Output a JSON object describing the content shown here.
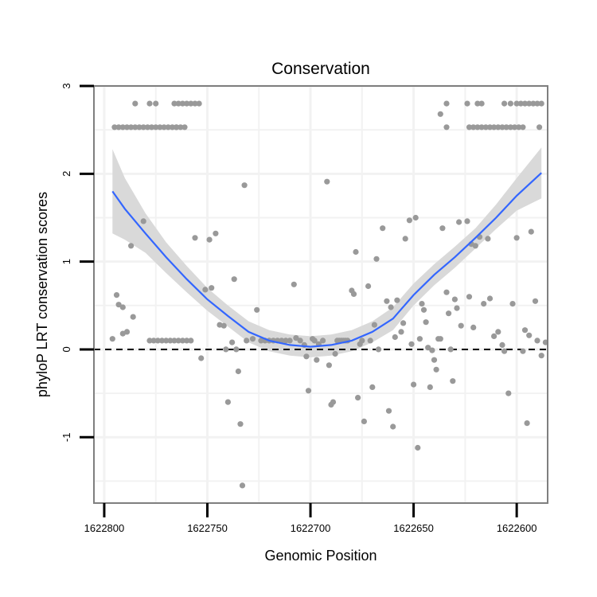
{
  "chart_data": {
    "type": "scatter",
    "title": "Conservation",
    "xlabel": "Genomic Position",
    "ylabel": "phyloP LRT conservation scores",
    "x_reversed": true,
    "xlim": [
      1622805,
      1622585
    ],
    "ylim": [
      -1.75,
      3.0
    ],
    "x_ticks": [
      1622800,
      1622750,
      1622700,
      1622650,
      1622600
    ],
    "x_tick_labels": [
      "1622800",
      "1622750",
      "1622700",
      "1622650",
      "1622600"
    ],
    "y_ticks": [
      -1,
      0,
      1,
      2,
      3
    ],
    "y_tick_labels": [
      "-1",
      "0",
      "1",
      "2",
      "3"
    ],
    "reference_line_y": 0,
    "colors": {
      "points": "#999999",
      "smooth": "#3366ff",
      "ribbon": "#d9d9d9",
      "panel_border": "#7f7f7f",
      "grid": "#f2f2f2"
    },
    "series": [
      {
        "name": "points",
        "points": [
          [
            1622795,
            2.53
          ],
          [
            1622793,
            2.53
          ],
          [
            1622791,
            2.53
          ],
          [
            1622789,
            2.53
          ],
          [
            1622787,
            2.53
          ],
          [
            1622785,
            2.53
          ],
          [
            1622783,
            2.53
          ],
          [
            1622781,
            2.53
          ],
          [
            1622779,
            2.53
          ],
          [
            1622777,
            2.53
          ],
          [
            1622775,
            2.53
          ],
          [
            1622773,
            2.53
          ],
          [
            1622771,
            2.53
          ],
          [
            1622769,
            2.53
          ],
          [
            1622767,
            2.53
          ],
          [
            1622765,
            2.53
          ],
          [
            1622763,
            2.53
          ],
          [
            1622761,
            2.53
          ],
          [
            1622785,
            2.8
          ],
          [
            1622778,
            2.8
          ],
          [
            1622775,
            2.8
          ],
          [
            1622765,
            2.53
          ],
          [
            1622766,
            2.8
          ],
          [
            1622764,
            2.8
          ],
          [
            1622762,
            2.8
          ],
          [
            1622760,
            2.8
          ],
          [
            1622758,
            2.8
          ],
          [
            1622756,
            2.8
          ],
          [
            1622754,
            2.8
          ],
          [
            1622634,
            2.8
          ],
          [
            1622624,
            2.8
          ],
          [
            1622619,
            2.8
          ],
          [
            1622617,
            2.8
          ],
          [
            1622606,
            2.8
          ],
          [
            1622603,
            2.8
          ],
          [
            1622600,
            2.8
          ],
          [
            1622598,
            2.8
          ],
          [
            1622596,
            2.8
          ],
          [
            1622594,
            2.8
          ],
          [
            1622592,
            2.8
          ],
          [
            1622590,
            2.8
          ],
          [
            1622588,
            2.8
          ],
          [
            1622623,
            2.53
          ],
          [
            1622621,
            2.53
          ],
          [
            1622619,
            2.53
          ],
          [
            1622617,
            2.53
          ],
          [
            1622615,
            2.53
          ],
          [
            1622613,
            2.53
          ],
          [
            1622611,
            2.53
          ],
          [
            1622609,
            2.53
          ],
          [
            1622607,
            2.53
          ],
          [
            1622605,
            2.53
          ],
          [
            1622603,
            2.53
          ],
          [
            1622601,
            2.53
          ],
          [
            1622599,
            2.53
          ],
          [
            1622597,
            2.53
          ],
          [
            1622634,
            2.53
          ],
          [
            1622589,
            2.53
          ],
          [
            1622637,
            2.68
          ],
          [
            1622796,
            0.12
          ],
          [
            1622794,
            0.62
          ],
          [
            1622793,
            0.51
          ],
          [
            1622791,
            0.48
          ],
          [
            1622791,
            0.18
          ],
          [
            1622789,
            0.2
          ],
          [
            1622787,
            1.18
          ],
          [
            1622786,
            0.37
          ],
          [
            1622781,
            1.46
          ],
          [
            1622778,
            0.1
          ],
          [
            1622776,
            0.1
          ],
          [
            1622774,
            0.1
          ],
          [
            1622772,
            0.1
          ],
          [
            1622770,
            0.1
          ],
          [
            1622768,
            0.1
          ],
          [
            1622766,
            0.1
          ],
          [
            1622764,
            0.1
          ],
          [
            1622762,
            0.1
          ],
          [
            1622760,
            0.1
          ],
          [
            1622758,
            0.1
          ],
          [
            1622756,
            1.27
          ],
          [
            1622753,
            -0.1
          ],
          [
            1622751,
            0.68
          ],
          [
            1622749,
            1.25
          ],
          [
            1622748,
            0.7
          ],
          [
            1622746,
            1.32
          ],
          [
            1622744,
            0.28
          ],
          [
            1622742,
            0.27
          ],
          [
            1622741,
            0.0
          ],
          [
            1622740,
            -0.6
          ],
          [
            1622738,
            0.08
          ],
          [
            1622737,
            0.8
          ],
          [
            1622736,
            0.0
          ],
          [
            1622735,
            -0.25
          ],
          [
            1622734,
            -0.85
          ],
          [
            1622733,
            -1.55
          ],
          [
            1622732,
            1.87
          ],
          [
            1622731,
            0.1
          ],
          [
            1622728,
            0.12
          ],
          [
            1622726,
            0.45
          ],
          [
            1622724,
            0.1
          ],
          [
            1622722,
            0.1
          ],
          [
            1622720,
            0.1
          ],
          [
            1622718,
            0.1
          ],
          [
            1622716,
            0.1
          ],
          [
            1622714,
            0.1
          ],
          [
            1622712,
            0.1
          ],
          [
            1622710,
            0.1
          ],
          [
            1622708,
            0.74
          ],
          [
            1622707,
            0.13
          ],
          [
            1622705,
            0.1
          ],
          [
            1622703,
            0.05
          ],
          [
            1622702,
            -0.08
          ],
          [
            1622701,
            -0.47
          ],
          [
            1622699,
            0.12
          ],
          [
            1622698,
            0.1
          ],
          [
            1622697,
            -0.12
          ],
          [
            1622696,
            0.06
          ],
          [
            1622694,
            0.1
          ],
          [
            1622692,
            1.91
          ],
          [
            1622691,
            -0.18
          ],
          [
            1622690,
            -0.63
          ],
          [
            1622689,
            -0.6
          ],
          [
            1622688,
            -0.05
          ],
          [
            1622687,
            0.1
          ],
          [
            1622686,
            0.1
          ],
          [
            1622685,
            0.1
          ],
          [
            1622684,
            0.1
          ],
          [
            1622683,
            0.1
          ],
          [
            1622682,
            0.1
          ],
          [
            1622680,
            0.67
          ],
          [
            1622679,
            0.63
          ],
          [
            1622678,
            1.11
          ],
          [
            1622677,
            -0.55
          ],
          [
            1622676,
            0.06
          ],
          [
            1622675,
            0.1
          ],
          [
            1622674,
            -0.82
          ],
          [
            1622672,
            0.72
          ],
          [
            1622671,
            0.1
          ],
          [
            1622670,
            -0.43
          ],
          [
            1622669,
            0.28
          ],
          [
            1622668,
            1.03
          ],
          [
            1622667,
            0.0
          ],
          [
            1622665,
            1.38
          ],
          [
            1622663,
            0.55
          ],
          [
            1622662,
            -0.7
          ],
          [
            1622661,
            0.48
          ],
          [
            1622660,
            -0.88
          ],
          [
            1622659,
            0.14
          ],
          [
            1622658,
            0.56
          ],
          [
            1622656,
            0.2
          ],
          [
            1622655,
            0.3
          ],
          [
            1622654,
            1.26
          ],
          [
            1622652,
            1.47
          ],
          [
            1622651,
            0.06
          ],
          [
            1622650,
            -0.4
          ],
          [
            1622649,
            1.5
          ],
          [
            1622648,
            -1.12
          ],
          [
            1622647,
            0.12
          ],
          [
            1622646,
            0.52
          ],
          [
            1622645,
            0.45
          ],
          [
            1622644,
            0.31
          ],
          [
            1622643,
            0.02
          ],
          [
            1622642,
            -0.43
          ],
          [
            1622641,
            -0.01
          ],
          [
            1622640,
            -0.12
          ],
          [
            1622639,
            -0.23
          ],
          [
            1622638,
            0.12
          ],
          [
            1622637,
            0.12
          ],
          [
            1622636,
            1.38
          ],
          [
            1622634,
            0.65
          ],
          [
            1622633,
            0.41
          ],
          [
            1622632,
            0.0
          ],
          [
            1622631,
            -0.36
          ],
          [
            1622630,
            0.57
          ],
          [
            1622629,
            0.47
          ],
          [
            1622628,
            1.45
          ],
          [
            1622627,
            0.27
          ],
          [
            1622624,
            1.46
          ],
          [
            1622623,
            0.6
          ],
          [
            1622622,
            1.2
          ],
          [
            1622621,
            0.25
          ],
          [
            1622620,
            1.18
          ],
          [
            1622618,
            1.28
          ],
          [
            1622616,
            0.52
          ],
          [
            1622614,
            1.26
          ],
          [
            1622613,
            0.58
          ],
          [
            1622611,
            0.15
          ],
          [
            1622609,
            0.2
          ],
          [
            1622607,
            0.05
          ],
          [
            1622606,
            -0.02
          ],
          [
            1622604,
            -0.5
          ],
          [
            1622602,
            0.52
          ],
          [
            1622600,
            1.27
          ],
          [
            1622597,
            -0.02
          ],
          [
            1622596,
            0.22
          ],
          [
            1622595,
            -0.84
          ],
          [
            1622594,
            0.16
          ],
          [
            1622593,
            1.34
          ],
          [
            1622591,
            0.55
          ],
          [
            1622590,
            0.1
          ],
          [
            1622588,
            -0.07
          ],
          [
            1622586,
            0.08
          ]
        ]
      },
      {
        "name": "smooth",
        "points": [
          [
            1622796,
            1.8
          ],
          [
            1622790,
            1.6
          ],
          [
            1622780,
            1.32
          ],
          [
            1622770,
            1.05
          ],
          [
            1622760,
            0.8
          ],
          [
            1622750,
            0.57
          ],
          [
            1622740,
            0.38
          ],
          [
            1622730,
            0.2
          ],
          [
            1622720,
            0.1
          ],
          [
            1622710,
            0.05
          ],
          [
            1622700,
            0.03
          ],
          [
            1622690,
            0.05
          ],
          [
            1622680,
            0.1
          ],
          [
            1622670,
            0.2
          ],
          [
            1622660,
            0.35
          ],
          [
            1622650,
            0.62
          ],
          [
            1622640,
            0.85
          ],
          [
            1622630,
            1.05
          ],
          [
            1622620,
            1.27
          ],
          [
            1622610,
            1.5
          ],
          [
            1622600,
            1.75
          ],
          [
            1622588,
            2.01
          ]
        ],
        "ribbon_upper": [
          2.28,
          1.95,
          1.55,
          1.22,
          0.95,
          0.7,
          0.5,
          0.32,
          0.22,
          0.17,
          0.15,
          0.17,
          0.22,
          0.32,
          0.48,
          0.75,
          0.97,
          1.17,
          1.38,
          1.65,
          1.95,
          2.3
        ],
        "ribbon_lower": [
          1.32,
          1.25,
          1.1,
          0.87,
          0.65,
          0.44,
          0.26,
          0.08,
          -0.02,
          -0.07,
          -0.09,
          -0.07,
          -0.02,
          0.08,
          0.22,
          0.5,
          0.73,
          0.93,
          1.15,
          1.37,
          1.58,
          1.72
        ]
      }
    ]
  }
}
